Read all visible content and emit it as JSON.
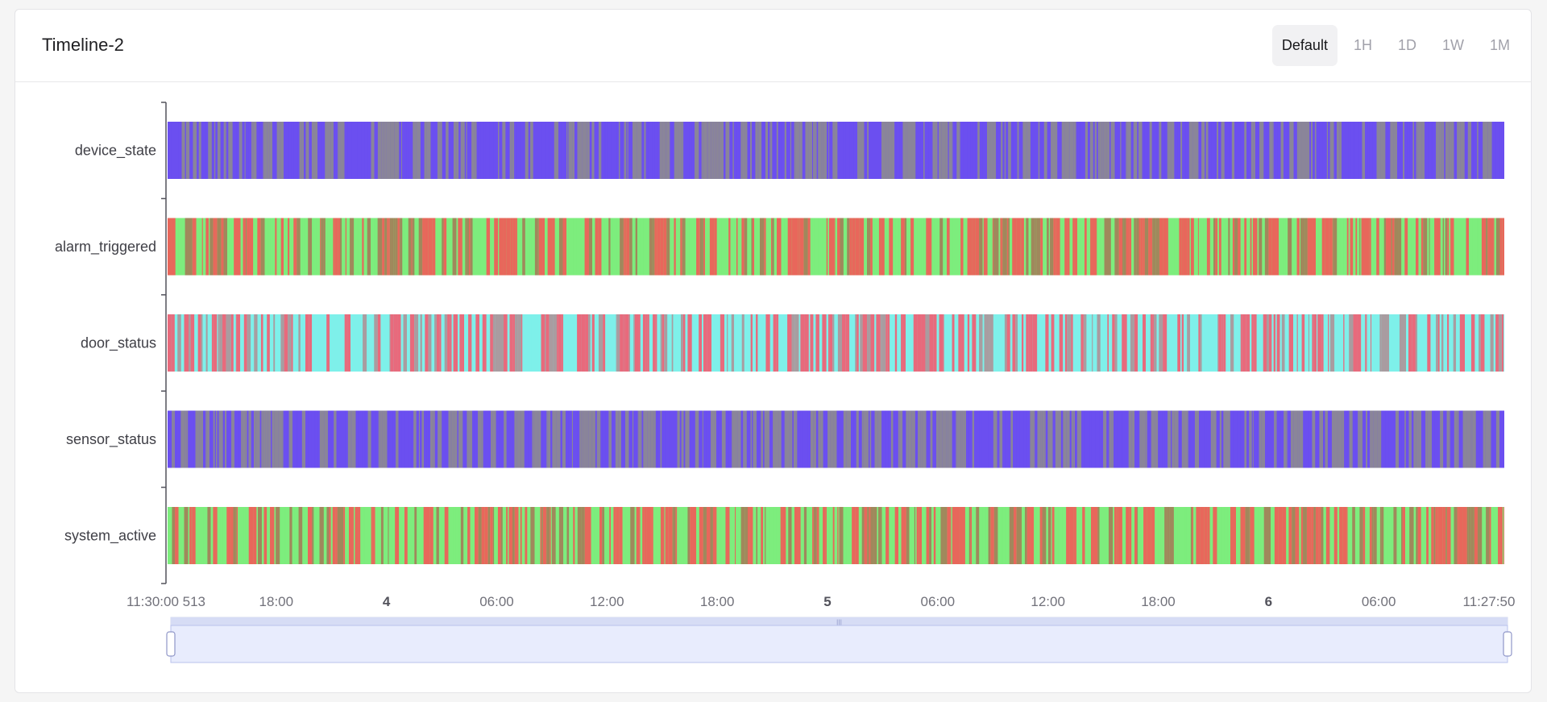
{
  "panel": {
    "title": "Timeline-2"
  },
  "range_tabs": [
    {
      "label": "Default",
      "active": true
    },
    {
      "label": "1H",
      "active": false
    },
    {
      "label": "1D",
      "active": false
    },
    {
      "label": "1W",
      "active": false
    },
    {
      "label": "1M",
      "active": false
    }
  ],
  "chart_data": {
    "type": "state-timeline",
    "title": "Timeline-2",
    "rows": [
      {
        "name": "device_state",
        "colors": [
          "#6b4ff0",
          "#8a8599"
        ]
      },
      {
        "name": "alarm_triggered",
        "colors": [
          "#7ded7d",
          "#e8675b",
          "#a0885c"
        ]
      },
      {
        "name": "door_status",
        "colors": [
          "#7ef0ea",
          "#e86a7c",
          "#a99ca0"
        ]
      },
      {
        "name": "sensor_status",
        "colors": [
          "#6b4ff0",
          "#8a8599"
        ]
      },
      {
        "name": "system_active",
        "colors": [
          "#7ded7d",
          "#e8675b",
          "#a0885c"
        ]
      }
    ],
    "x_ticks": [
      {
        "label": "11:30:00 513",
        "bold": false
      },
      {
        "label": "18:00",
        "bold": false
      },
      {
        "label": "4",
        "bold": true
      },
      {
        "label": "06:00",
        "bold": false
      },
      {
        "label": "12:00",
        "bold": false
      },
      {
        "label": "18:00",
        "bold": false
      },
      {
        "label": "5",
        "bold": true
      },
      {
        "label": "06:00",
        "bold": false
      },
      {
        "label": "12:00",
        "bold": false
      },
      {
        "label": "18:00",
        "bold": false
      },
      {
        "label": "6",
        "bold": true
      },
      {
        "label": "06:00",
        "bold": false
      },
      {
        "label": "11:27:50",
        "bold": false
      }
    ],
    "zoom": {
      "start": 0,
      "end": 1
    },
    "grid": false
  }
}
